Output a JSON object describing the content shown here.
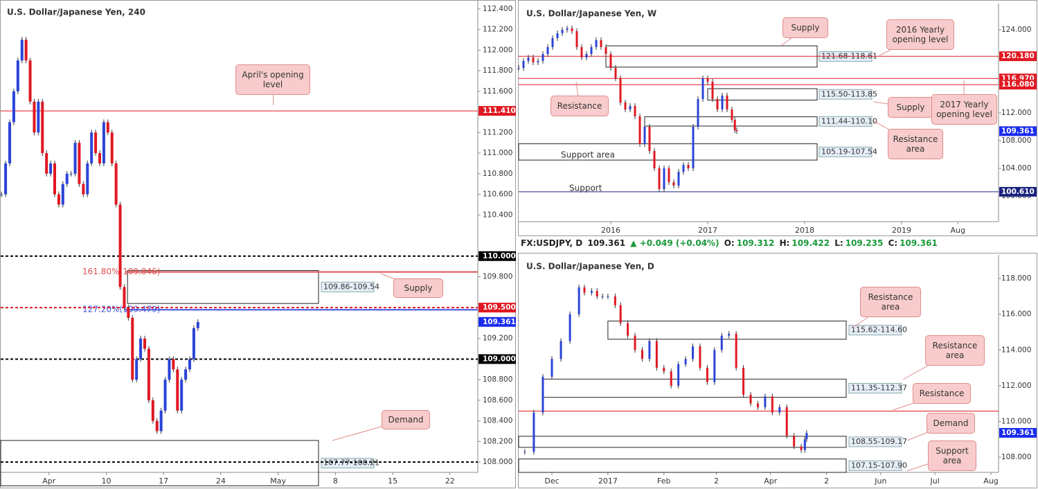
{
  "chart_data": [
    {
      "type": "candlestick",
      "title": "U.S. Dollar/Japanese Yen, 240",
      "up_color": "#2a44d8",
      "down_color": "#e01822",
      "x": [
        87.2,
        87.7,
        88.2,
        88.7,
        89.2,
        89.7,
        90.2,
        90.7,
        91.2,
        91.7,
        92.2,
        92.7,
        93.2,
        93.7,
        94.2,
        94.7,
        95.2,
        95.7,
        96.2,
        96.7,
        97.2,
        97.7,
        98.2,
        98.7,
        99.2,
        99.7,
        100.2,
        100.7,
        101.2,
        101.7,
        102.2,
        102.7,
        103.2,
        103.7,
        104.2,
        104.7,
        105.2,
        105.7,
        106.2,
        106.7,
        107.2,
        107.7,
        108.2,
        108.7,
        109.2,
        109.7,
        110.2,
        110.7,
        111.2
      ],
      "values": [
        110.6,
        110.9,
        111.3,
        111.6,
        111.9,
        112.1,
        111.9,
        111.5,
        111.2,
        111.5,
        111.0,
        110.8,
        110.9,
        110.6,
        110.5,
        110.7,
        110.8,
        110.8,
        111.1,
        110.7,
        110.6,
        110.9,
        111.2,
        111.0,
        110.9,
        111.3,
        111.2,
        110.9,
        110.5,
        109.7,
        109.5,
        109.4,
        108.8,
        109.0,
        109.2,
        109.1,
        108.6,
        108.4,
        108.3,
        108.5,
        108.8,
        109.0,
        108.9,
        108.5,
        108.8,
        108.9,
        109.0,
        109.3,
        109.36
      ],
      "xlim": [
        87.1,
        145.4
      ],
      "ylim": [
        107.9,
        112.48
      ],
      "xticks": [
        {
          "value": 93,
          "label": "Apr"
        },
        {
          "value": 100,
          "label": "10"
        },
        {
          "value": 107,
          "label": "17"
        },
        {
          "value": 114,
          "label": "24"
        },
        {
          "value": 121,
          "label": "May"
        },
        {
          "value": 128,
          "label": "8"
        },
        {
          "value": 135,
          "label": "15"
        },
        {
          "value": 142,
          "label": "22"
        }
      ],
      "yticks": [
        {
          "value": 108,
          "label": "108.000"
        },
        {
          "value": 108.2,
          "label": "108.200"
        },
        {
          "value": 108.4,
          "label": "108.400"
        },
        {
          "value": 108.6,
          "label": "108.600"
        },
        {
          "value": 108.8,
          "label": "108.800"
        },
        {
          "value": 109.2,
          "label": "109.200"
        },
        {
          "value": 109.8,
          "label": "109.800"
        },
        {
          "value": 110.4,
          "label": "110.400"
        },
        {
          "value": 110.6,
          "label": "110.600"
        },
        {
          "value": 110.8,
          "label": "110.800"
        },
        {
          "value": 111,
          "label": "111.000"
        },
        {
          "value": 111.2,
          "label": "111.200"
        },
        {
          "value": 111.6,
          "label": "111.600"
        },
        {
          "value": 111.8,
          "label": "111.800"
        },
        {
          "value": 112,
          "label": "112.000"
        },
        {
          "value": 112.2,
          "label": "112.200"
        },
        {
          "value": 112.4,
          "label": "112.400"
        }
      ],
      "levels": [
        {
          "value": 111.41,
          "label": "111.410",
          "color": "#e01822",
          "style": "solid"
        },
        {
          "value": 110,
          "label": "110.000",
          "color": "#000000",
          "style": "dashed"
        },
        {
          "value": 109.5,
          "label": "109.500",
          "color": "#e01822",
          "style": "dashed"
        },
        {
          "value": 109.361,
          "label": "109.361",
          "color": "#1a2cf0",
          "style": "none"
        },
        {
          "value": 109,
          "label": "109.000",
          "color": "#000000",
          "style": "dashed"
        },
        {
          "value": 108,
          "color": "#000000",
          "style": "dashed"
        }
      ],
      "fib_levels": [
        {
          "value": 109.846,
          "label": "161.80%(109.846)",
          "color": "#e05050"
        },
        {
          "value": 109.479,
          "label": "127.20%(109.479)",
          "color": "#4050e0"
        }
      ],
      "zones": [
        {
          "high": 109.86,
          "low": 109.54,
          "label": "109.86-109.54",
          "x0": 102.6
        },
        {
          "high": 108.21,
          "low": 107.77,
          "label": "107.77-108.21"
        }
      ],
      "annotations": [],
      "callouts": [
        "April's opening level",
        "Supply",
        "Demand"
      ]
    },
    {
      "type": "candlestick",
      "title": "U.S. Dollar/Japanese Yen, W",
      "up_color": "#2a44d8",
      "down_color": "#e01822",
      "x": [
        2015.05,
        2015.1,
        2015.15,
        2015.2,
        2015.25,
        2015.3,
        2015.35,
        2015.4,
        2015.45,
        2015.5,
        2015.55,
        2015.6,
        2015.65,
        2015.7,
        2015.75,
        2015.8,
        2015.85,
        2015.9,
        2015.95,
        2016.0,
        2016.05,
        2016.1,
        2016.15,
        2016.2,
        2016.25,
        2016.3,
        2016.35,
        2016.4,
        2016.45,
        2016.5,
        2016.55,
        2016.6,
        2016.65,
        2016.7,
        2016.75,
        2016.8,
        2016.85,
        2016.9,
        2016.95,
        2017.0,
        2017.05,
        2017.1,
        2017.15,
        2017.2,
        2017.25,
        2017.28,
        2017.3
      ],
      "values": [
        118.5,
        119.5,
        120.0,
        119.3,
        119.5,
        120.5,
        121.5,
        122.8,
        123.5,
        124.0,
        124.2,
        123.8,
        121.5,
        120.0,
        120.5,
        121.5,
        122.5,
        121.5,
        120.5,
        118.5,
        117.0,
        113.5,
        112.5,
        113.0,
        111.5,
        107.5,
        110.0,
        106.5,
        104.0,
        101.0,
        104.0,
        102.0,
        101.5,
        103.5,
        104.5,
        104.0,
        110.0,
        114.0,
        117.0,
        116.5,
        114.0,
        112.5,
        114.5,
        112.5,
        111.0,
        109.5,
        109.36
      ],
      "xlim": [
        2015.05,
        2020.0
      ],
      "ylim": [
        96.3,
        127.8
      ],
      "xticks": [
        2016,
        2017,
        2018,
        2019,
        {
          "value": 2019.58,
          "label": "Aug"
        }
      ],
      "yticks": [
        {
          "value": 100,
          "label": "100.000"
        },
        {
          "value": 104,
          "label": "104.000"
        },
        {
          "value": 108,
          "label": "108.000"
        },
        {
          "value": 112,
          "label": "112.000"
        },
        {
          "value": 120,
          "label": "120.000"
        },
        {
          "value": 124,
          "label": "124.000"
        }
      ],
      "levels": [
        {
          "value": 120.18,
          "label": "120.180",
          "color": "#e01822",
          "style": "solid"
        },
        {
          "value": 116.97,
          "label": "116.970",
          "color": "#e01822",
          "style": "solid"
        },
        {
          "value": 116.08,
          "label": "116.080",
          "color": "#e01822",
          "style": "solid"
        },
        {
          "value": 109.361,
          "label": "109.361",
          "color": "#1a2cf0",
          "style": "none"
        },
        {
          "value": 100.61,
          "label": "100.610",
          "color": "#1a237e",
          "style": "solid"
        }
      ],
      "fib_levels": [],
      "zones": [
        {
          "high": 121.68,
          "low": 118.61,
          "label": "121.68-118.61",
          "x0": 2015.95
        },
        {
          "high": 115.5,
          "low": 113.85,
          "label": "115.50-113.85",
          "x0": 2017.0
        },
        {
          "high": 111.44,
          "low": 110.1,
          "label": "111.44-110.10",
          "x0": 2016.35
        },
        {
          "high": 107.54,
          "low": 105.19,
          "label": "105.19-107.54"
        }
      ],
      "annotations": [
        "Support area",
        "Support"
      ],
      "callouts": [
        "Supply",
        "Resistance",
        "2016 Yearly opening level",
        "Supply",
        "2017 Yearly opening level",
        "Resistance area"
      ]
    },
    {
      "type": "candlestick",
      "title": "U.S. Dollar/Japanese Yen, D",
      "up_color": "#2a44d8",
      "down_color": "#e01822",
      "x": [
        -45,
        -40,
        -35,
        -30,
        -25,
        -20,
        -15,
        -12,
        -8,
        -5,
        -2,
        1,
        5,
        8,
        12,
        16,
        20,
        24,
        28,
        32,
        36,
        40,
        44,
        48,
        52,
        56,
        60,
        64,
        68,
        72,
        76,
        80,
        84,
        88,
        92,
        96,
        100,
        104,
        108,
        110,
        111
      ],
      "values": [
        108.3,
        110.5,
        112.5,
        113.5,
        114.5,
        116.0,
        117.5,
        117.2,
        117.3,
        117.0,
        117.0,
        117.0,
        116.5,
        115.5,
        114.8,
        114.0,
        113.5,
        114.5,
        113.0,
        112.8,
        112.0,
        113.2,
        113.5,
        114.2,
        113.0,
        112.2,
        114.0,
        114.8,
        114.9,
        113.0,
        111.5,
        111.0,
        110.8,
        111.4,
        110.5,
        110.8,
        109.2,
        108.6,
        108.4,
        109.0,
        109.36
      ],
      "xlim": [
        -48.4,
        217.2
      ],
      "ylim": [
        107.15,
        119.32
      ],
      "xticks": [
        {
          "value": -30,
          "label": "Dec"
        },
        {
          "value": 1,
          "label": "2017"
        },
        {
          "value": 32,
          "label": "Feb"
        },
        {
          "value": 61,
          "label": "2"
        },
        {
          "value": 91,
          "label": "Apr"
        },
        {
          "value": 122,
          "label": "2"
        },
        {
          "value": 152,
          "label": "Jun"
        },
        {
          "value": 182,
          "label": "Jul"
        },
        {
          "value": 213,
          "label": "Aug"
        }
      ],
      "yticks": [
        {
          "value": 108,
          "label": "108.000"
        },
        {
          "value": 110,
          "label": "110.000"
        },
        {
          "value": 112,
          "label": "112.000"
        },
        {
          "value": 114,
          "label": "114.000"
        },
        {
          "value": 116,
          "label": "116.000"
        },
        {
          "value": 118,
          "label": "118.000"
        }
      ],
      "levels": [
        {
          "value": 110.58,
          "color": "#e01822",
          "style": "solid"
        },
        {
          "value": 109.361,
          "label": "109.361",
          "color": "#1a2cf0",
          "style": "none"
        }
      ],
      "fib_levels": [],
      "zones": [
        {
          "high": 115.62,
          "low": 114.6,
          "label": "115.62-114.60",
          "x0": 1
        },
        {
          "high": 112.37,
          "low": 111.35,
          "label": "111.35-112.37",
          "x0": -35
        },
        {
          "high": 109.17,
          "low": 108.55,
          "label": "108.55-109.17"
        },
        {
          "high": 107.9,
          "low": 107.15,
          "label": "107.15-107.90"
        }
      ],
      "annotations": [],
      "callouts": [
        "Resistance area",
        "Resistance area",
        "Resistance",
        "Demand",
        "Support area"
      ]
    }
  ],
  "info": {
    "symbol": "FX:USDJPY, D",
    "last": "109.361",
    "change": "▲ +0.049 (+0.04%)",
    "ohlc": [
      {
        "label": "O:",
        "value": "109.312"
      },
      {
        "label": "H:",
        "value": "109.422"
      },
      {
        "label": "L:",
        "value": "109.235"
      },
      {
        "label": "C:",
        "value": "109.361"
      }
    ]
  }
}
